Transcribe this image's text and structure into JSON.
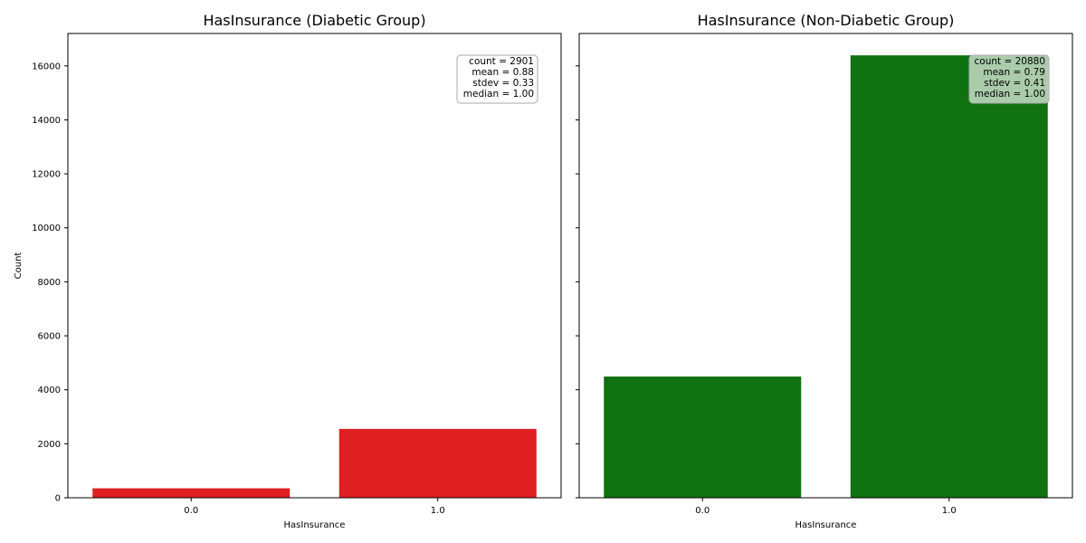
{
  "chart_data": [
    {
      "type": "bar",
      "title": "HasInsurance (Diabetic Group)",
      "xlabel": "HasInsurance",
      "ylabel": "Count",
      "categories": [
        "0.0",
        "1.0"
      ],
      "values": [
        350,
        2551
      ],
      "ylim": [
        0,
        17200
      ],
      "yticks": [
        0,
        2000,
        4000,
        6000,
        8000,
        10000,
        12000,
        14000,
        16000
      ],
      "ytick_labels": [
        "0",
        "2000",
        "4000",
        "6000",
        "8000",
        "10000",
        "12000",
        "14000",
        "16000"
      ],
      "bar_color": "#df1f22",
      "grid": false,
      "stats": [
        "count = 2901",
        "mean = 0.88",
        "stdev = 0.33",
        "median = 1.00"
      ],
      "stats_box_fill": "#ffffff"
    },
    {
      "type": "bar",
      "title": "HasInsurance (Non-Diabetic Group)",
      "xlabel": "HasInsurance",
      "ylabel": "",
      "categories": [
        "0.0",
        "1.0"
      ],
      "values": [
        4490,
        16390
      ],
      "ylim": [
        0,
        17200
      ],
      "yticks": [
        0,
        2000,
        4000,
        6000,
        8000,
        10000,
        12000,
        14000,
        16000
      ],
      "ytick_labels": [],
      "bar_color": "#107111",
      "grid": false,
      "stats": [
        "count = 20880",
        "mean = 0.79",
        "stdev = 0.41",
        "median = 1.00"
      ],
      "stats_box_fill": "#b9d4b8"
    }
  ]
}
